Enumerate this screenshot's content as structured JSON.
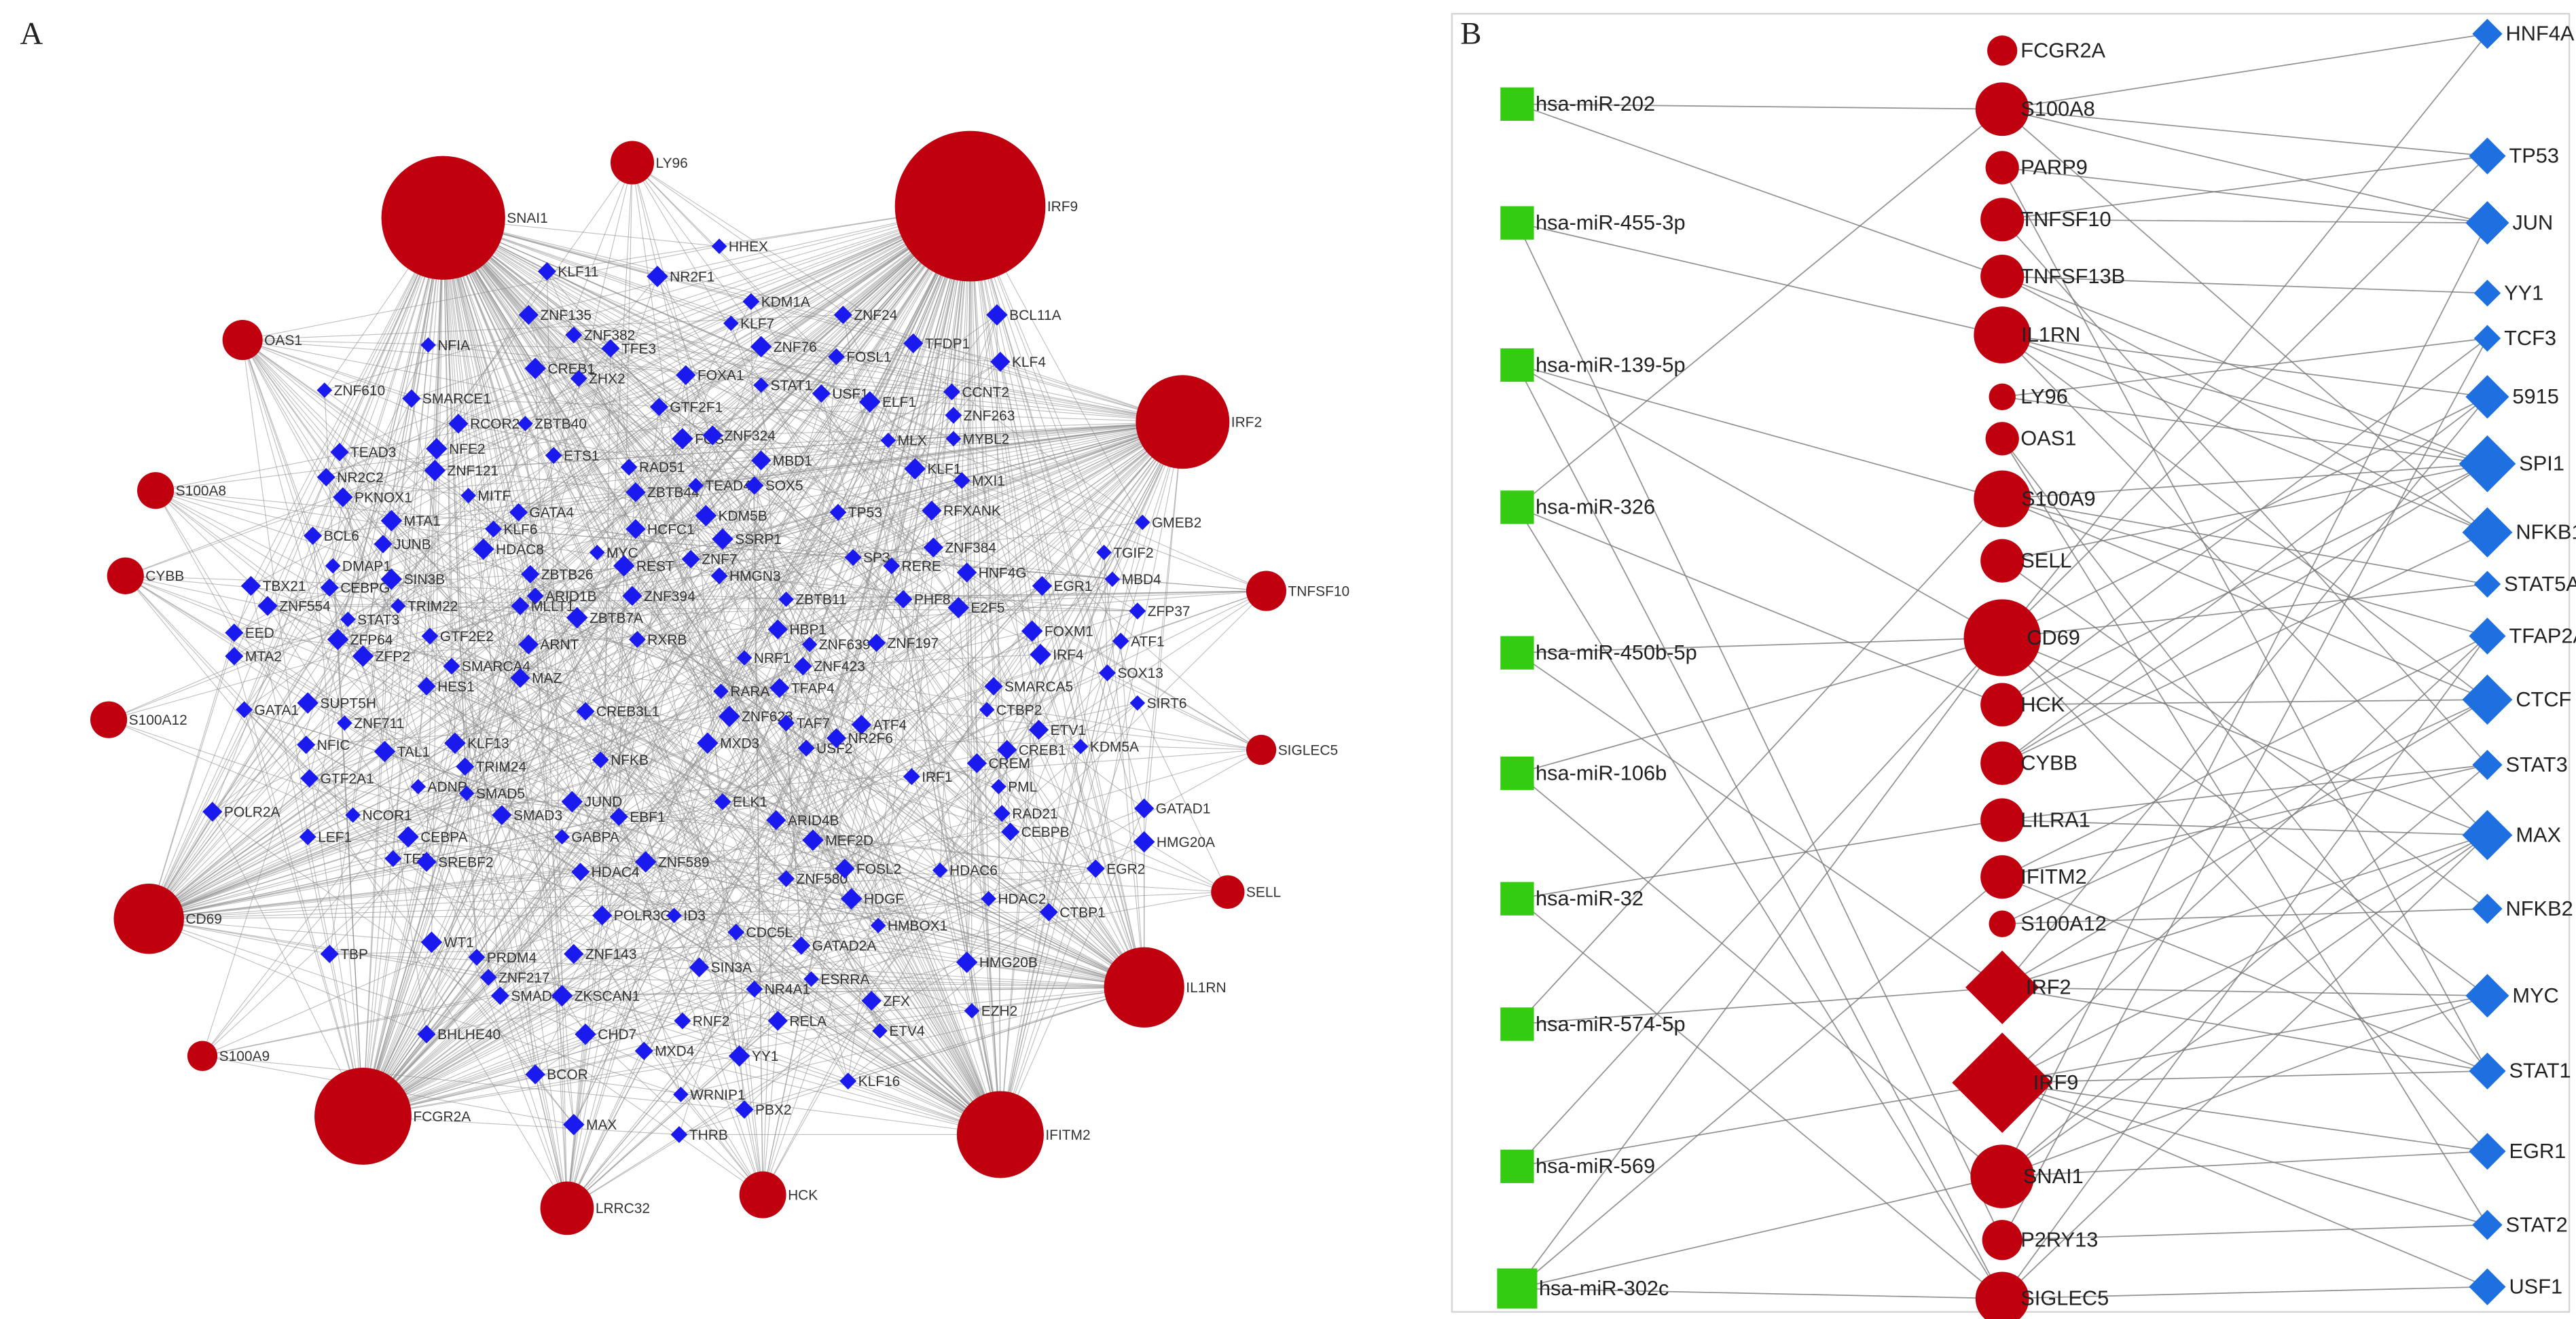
{
  "colors": {
    "gene": "#c0000f",
    "tf": "#1a1aee",
    "mirna": "#33cc11",
    "tf_b": "#1e6fe0",
    "edge": "#8a8a8a",
    "frame": "#d0d0d0"
  },
  "panel_a": {
    "label": "A",
    "hubs": [
      "SNAI1",
      "IRF9",
      "IRF2",
      "LY96",
      "OAS1",
      "S100A8",
      "CYBB",
      "TNFSF10",
      "S100A12",
      "SIGLEC5",
      "CD69",
      "SELL",
      "IL1RN",
      "S100A9",
      "FCGR2A",
      "IFITM2",
      "LRRC32",
      "HCK"
    ],
    "tfs": [
      "HHEX",
      "KLF11",
      "NR2F1",
      "KDM1A",
      "ZNF135",
      "KLF7",
      "ZNF24",
      "BCL11A",
      "ZNF382",
      "TFDP1",
      "NFIA",
      "TFE3",
      "ZNF76",
      "FOSL1",
      "KLF4",
      "ZNF610",
      "SMARCE1",
      "CREB1",
      "ZHX2",
      "FOXA1",
      "STAT1",
      "USF1",
      "ELF1",
      "CCNT2",
      "RCOR2",
      "ZBTB40",
      "GTF2F1",
      "FOS",
      "ZNF263",
      "ZNF324",
      "MYBL2",
      "TEAD3",
      "NFE2",
      "ETS1",
      "MBD1",
      "MLX",
      "NR2C2",
      "ZNF121",
      "RAD51",
      "ZBTB44",
      "TEAD4",
      "SOX5",
      "KLF1",
      "MXI1",
      "PKNOX1",
      "MITF",
      "GATA4",
      "KDM5B",
      "TP53",
      "RFXANK",
      "GMEB2",
      "BCL6",
      "MTA1",
      "KLF6",
      "HCFC1",
      "MYC",
      "ZNF7",
      "SSRP1",
      "SP3",
      "ZNF384",
      "TGIF2",
      "JUNB",
      "HDAC8",
      "RERE",
      "HNF4G",
      "DMAP1",
      "ZBTB26",
      "REST",
      "HMGN3",
      "EGR1",
      "MBD4",
      "CEBPG",
      "SIN3B",
      "ARID1B",
      "ZNF394",
      "ZBTB11",
      "PHF8",
      "E2F5",
      "ZFP37",
      "TBX21",
      "TRIM22",
      "MLLT1",
      "ZBTB7A",
      "RXRB",
      "HBP1",
      "ZNF639",
      "ZNF197",
      "FOXM1",
      "ATF1",
      "ZNF554",
      "STAT3",
      "EED",
      "ZFP64",
      "GTF2E2",
      "ARNT",
      "NRF1",
      "ZNF423",
      "IRF4",
      "SOX13",
      "TFAP4",
      "SIRT6",
      "MTA2",
      "ZFP2",
      "SMARCA4",
      "MAZ",
      "RARA",
      "SMARCA5",
      "ZNF623",
      "TAF7",
      "ATF4",
      "CTBP2",
      "HES1",
      "SUPT5H",
      "GATA1",
      "ETV1",
      "ZNF711",
      "CREB3L1",
      "MXD3",
      "USF2",
      "CREB1",
      "KDM5A",
      "NFIC",
      "TAL1",
      "NFKB",
      "CREM",
      "PML",
      "GTF2A1",
      "KLF13",
      "IRF1",
      "POLR2A",
      "ADNP",
      "TRIM24",
      "JUND",
      "ELK1",
      "ARID4B",
      "SMAD5",
      "EBF1",
      "MEF2D",
      "RAD21",
      "GATAD1",
      "NCOR1",
      "CEBPB",
      "HMG20A",
      "LEF1",
      "SMAD3",
      "GABPA",
      "HDAC4",
      "ZNF589",
      "ZNF580",
      "FOSL2",
      "HDAC6",
      "EGR2",
      "CEBPA",
      "TEF",
      "SREBF2",
      "HDAC2",
      "CTBP1",
      "HDGF",
      "CDC5L",
      "POLR3G",
      "ID3",
      "TBP",
      "WT1",
      "PRDM4",
      "ZNF143",
      "HMBOX1",
      "GATAD2A",
      "HMG20B",
      "ZNF217",
      "SIN3A",
      "ESRRA",
      "SMAD4",
      "ZKSCAN1",
      "NR4A1",
      "ZFX",
      "EZH2",
      "BHLHE40",
      "CHD7",
      "RNF2",
      "RELA",
      "ETV4",
      "MXD4",
      "YY1",
      "KLF16",
      "BCOR",
      "WRNIP1",
      "PBX2",
      "MAX",
      "THRB",
      "NR2F6"
    ]
  },
  "panel_b": {
    "label": "B",
    "mirnas": [
      "hsa-miR-202",
      "hsa-miR-455-3p",
      "hsa-miR-139-5p",
      "hsa-miR-326",
      "hsa-miR-450b-5p",
      "hsa-miR-106b",
      "hsa-miR-32",
      "hsa-miR-574-5p",
      "hsa-miR-569",
      "hsa-miR-302c"
    ],
    "genes": [
      "FCGR2A",
      "S100A8",
      "PARP9",
      "TNFSF10",
      "TNFSF13B",
      "IL1RN",
      "LY96",
      "OAS1",
      "S100A9",
      "SELL",
      "CD69",
      "HCK",
      "CYBB",
      "LILRA1",
      "IFITM2",
      "S100A12",
      "IRF2",
      "IRF9",
      "SNAI1",
      "P2RY13",
      "SIGLEC5"
    ],
    "tfs": [
      "HNF4A",
      "TP53",
      "JUN",
      "YY1",
      "TCF3",
      "5915",
      "SPI1",
      "NFKB1",
      "STAT5A",
      "TFAP2A",
      "CTCF",
      "STAT3",
      "MAX",
      "NFKB2",
      "MYC",
      "STAT1",
      "EGR1",
      "STAT2",
      "USF1"
    ],
    "edges": [
      [
        "hsa-miR-202",
        "S100A8"
      ],
      [
        "hsa-miR-202",
        "TNFSF13B"
      ],
      [
        "hsa-miR-455-3p",
        "P2RY13"
      ],
      [
        "hsa-miR-455-3p",
        "IL1RN"
      ],
      [
        "hsa-miR-139-5p",
        "CD69"
      ],
      [
        "hsa-miR-139-5p",
        "S100A9"
      ],
      [
        "hsa-miR-139-5p",
        "SIGLEC5"
      ],
      [
        "hsa-miR-326",
        "S100A8"
      ],
      [
        "hsa-miR-326",
        "HCK"
      ],
      [
        "hsa-miR-326",
        "SIGLEC5"
      ],
      [
        "hsa-miR-450b-5p",
        "CD69"
      ],
      [
        "hsa-miR-450b-5p",
        "IRF2"
      ],
      [
        "hsa-miR-106b",
        "CD69"
      ],
      [
        "hsa-miR-106b",
        "SNAI1"
      ],
      [
        "hsa-miR-32",
        "LILRA1"
      ],
      [
        "hsa-miR-32",
        "SIGLEC5"
      ],
      [
        "hsa-miR-574-5p",
        "IRF2"
      ],
      [
        "hsa-miR-574-5p",
        "S100A9"
      ],
      [
        "hsa-miR-569",
        "IRF9"
      ],
      [
        "hsa-miR-569",
        "CD69"
      ],
      [
        "hsa-miR-302c",
        "SNAI1"
      ],
      [
        "hsa-miR-302c",
        "SIGLEC5"
      ],
      [
        "hsa-miR-302c",
        "CD69"
      ],
      [
        "hsa-miR-302c",
        "IFITM2"
      ],
      [
        "S100A8",
        "HNF4A"
      ],
      [
        "S100A8",
        "TP53"
      ],
      [
        "S100A8",
        "JUN"
      ],
      [
        "S100A8",
        "NFKB1"
      ],
      [
        "PARP9",
        "STAT1"
      ],
      [
        "PARP9",
        "JUN"
      ],
      [
        "TNFSF10",
        "JUN"
      ],
      [
        "TNFSF10",
        "STAT3"
      ],
      [
        "TNFSF10",
        "TP53"
      ],
      [
        "TNFSF13B",
        "YY1"
      ],
      [
        "TNFSF13B",
        "NFKB1"
      ],
      [
        "TNFSF13B",
        "SPI1"
      ],
      [
        "IL1RN",
        "SPI1"
      ],
      [
        "IL1RN",
        "5915"
      ],
      [
        "IL1RN",
        "CTCF"
      ],
      [
        "IL1RN",
        "MAX"
      ],
      [
        "IL1RN",
        "NFKB1"
      ],
      [
        "LY96",
        "SPI1"
      ],
      [
        "LY96",
        "TCF3"
      ],
      [
        "OAS1",
        "STAT1"
      ],
      [
        "OAS1",
        "STAT2"
      ],
      [
        "S100A9",
        "SPI1"
      ],
      [
        "S100A9",
        "CTCF"
      ],
      [
        "S100A9",
        "STAT5A"
      ],
      [
        "S100A9",
        "TFAP2A"
      ],
      [
        "SELL",
        "NFKB2"
      ],
      [
        "SELL",
        "SPI1"
      ],
      [
        "CD69",
        "HNF4A"
      ],
      [
        "CD69",
        "TP53"
      ],
      [
        "CD69",
        "5915"
      ],
      [
        "CD69",
        "MAX"
      ],
      [
        "CD69",
        "EGR1"
      ],
      [
        "CD69",
        "MYC"
      ],
      [
        "CD69",
        "STAT5A"
      ],
      [
        "HCK",
        "SPI1"
      ],
      [
        "HCK",
        "TCF3"
      ],
      [
        "HCK",
        "CTCF"
      ],
      [
        "CYBB",
        "SPI1"
      ],
      [
        "CYBB",
        "NFKB1"
      ],
      [
        "CYBB",
        "5915"
      ],
      [
        "LILRA1",
        "STAT3"
      ],
      [
        "LILRA1",
        "MAX"
      ],
      [
        "IFITM2",
        "STAT1"
      ],
      [
        "IFITM2",
        "STAT3"
      ],
      [
        "IFITM2",
        "TFAP2A"
      ],
      [
        "S100A12",
        "NFKB2"
      ],
      [
        "S100A12",
        "CTCF"
      ],
      [
        "IRF2",
        "MYC"
      ],
      [
        "IRF2",
        "STAT1"
      ],
      [
        "IRF2",
        "MAX"
      ],
      [
        "IRF2",
        "CTCF"
      ],
      [
        "IRF2",
        "5915"
      ],
      [
        "IRF9",
        "STAT1"
      ],
      [
        "IRF9",
        "STAT2"
      ],
      [
        "IRF9",
        "USF1"
      ],
      [
        "IRF9",
        "EGR1"
      ],
      [
        "IRF9",
        "MAX"
      ],
      [
        "IRF9",
        "TFAP2A"
      ],
      [
        "IRF9",
        "MYC"
      ],
      [
        "SNAI1",
        "MYC"
      ],
      [
        "SNAI1",
        "EGR1"
      ],
      [
        "SNAI1",
        "MAX"
      ],
      [
        "SNAI1",
        "JUN"
      ],
      [
        "SNAI1",
        "STAT3"
      ],
      [
        "P2RY13",
        "STAT2"
      ],
      [
        "P2RY13",
        "TCF3"
      ],
      [
        "SIGLEC5",
        "USF1"
      ],
      [
        "SIGLEC5",
        "MAX"
      ],
      [
        "SIGLEC5",
        "TFAP2A"
      ]
    ]
  }
}
